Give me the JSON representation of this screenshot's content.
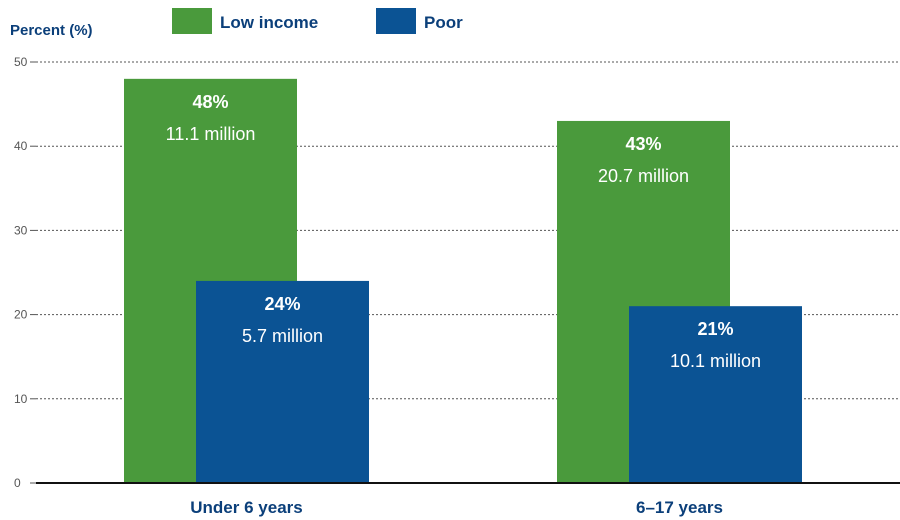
{
  "chart_data": {
    "type": "bar",
    "ylabel": "Percent (%)",
    "ylim": [
      0,
      50
    ],
    "yticks": [
      0,
      10,
      20,
      30,
      40,
      50
    ],
    "grid": true,
    "legend_position": "top",
    "categories": [
      "Under 6 years",
      "6–17 years"
    ],
    "series": [
      {
        "name": "Low income",
        "color": "#4a9a3c",
        "values": [
          48,
          43
        ],
        "labels": [
          "48%",
          "43%"
        ],
        "counts": [
          "11.1 million",
          "20.7 million"
        ]
      },
      {
        "name": "Poor",
        "color": "#0b5394",
        "values": [
          24,
          21
        ],
        "labels": [
          "24%",
          "21%"
        ],
        "counts": [
          "5.7 million",
          "10.1 million"
        ]
      }
    ]
  }
}
